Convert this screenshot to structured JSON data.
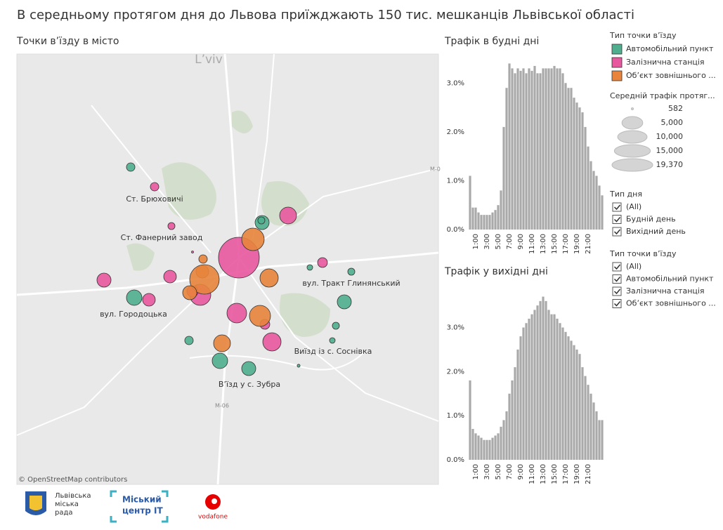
{
  "title": "В середньому протягом дня до Львова приїжджають 150 тис. мешканців Львівської області",
  "chart_data": [
    {
      "type": "bubble-map",
      "title": "Точки  в’їзду в місто",
      "legend_title": "Тип точки в’їзду",
      "series": [
        {
          "name": "Автомобільний пункт",
          "color": "#4fae8d",
          "values": [
            1090,
            2380,
            890,
            2820,
            2380,
            740,
            890,
            890,
            740,
            1090,
            2820,
            2380,
            590
          ]
        },
        {
          "name": "Залізнична станція",
          "color": "#e8589f",
          "values": [
            1090,
            890,
            582,
            3320,
            19370,
            2380,
            1980,
            1980,
            5110,
            1630,
            4460,
            3870,
            1330,
            1330
          ]
        },
        {
          "name": "Об’єкт зовнішнього ...",
          "color": "#e8843c",
          "values": [
            5810,
            1090,
            1980,
            10030,
            2380,
            3870,
            5110,
            3320
          ]
        }
      ],
      "size_legend": {
        "title": "Середній трафік протяг...",
        "values": [
          582,
          {
            "value": 5000,
            "label": "5,000"
          },
          {
            "value": 10000,
            "label": "10,000"
          },
          {
            "value": 15000,
            "label": "15,000"
          },
          {
            "value": 19370,
            "label": "19,370"
          }
        ]
      },
      "annotations": [
        "Ст. Брюховичі",
        "Ст. Фанерний завод",
        "вул. Городоцька",
        "вул. Тракт Глинянський",
        "Виїзд із с. Соснівка",
        "В’їзд у с. Зубра"
      ],
      "map_labels": [
        "L’viv",
        "M-06",
        "M-0"
      ],
      "attribution": "© OpenStreetMap contributors"
    },
    {
      "type": "bar",
      "title": "Трафік в будні дні",
      "color": "#a9a9a9",
      "categories": [
        null,
        null,
        "1:00",
        null,
        null,
        null,
        "3:00",
        null,
        null,
        null,
        "5:00",
        null,
        null,
        null,
        "7:00",
        null,
        null,
        null,
        "9:00",
        null,
        null,
        null,
        "11:00",
        null,
        null,
        null,
        "13:00",
        null,
        null,
        null,
        "15:00",
        null,
        null,
        null,
        "17:00",
        null,
        null,
        null,
        "19:00",
        null,
        null,
        null,
        "21:00",
        null,
        null,
        null,
        null,
        null
      ],
      "values": [
        1.1,
        0.45,
        0.45,
        0.35,
        0.3,
        0.3,
        0.3,
        0.3,
        0.35,
        0.4,
        0.5,
        0.8,
        2.1,
        2.9,
        3.4,
        3.3,
        3.2,
        3.3,
        3.25,
        3.3,
        3.2,
        3.3,
        3.25,
        3.35,
        3.2,
        3.2,
        3.3,
        3.3,
        3.3,
        3.3,
        3.35,
        3.3,
        3.3,
        3.2,
        3.0,
        2.9,
        2.9,
        2.7,
        2.6,
        2.5,
        2.4,
        2.1,
        1.7,
        1.4,
        1.2,
        1.1,
        0.9,
        0.7
      ],
      "ylim": [
        0,
        3.55
      ],
      "yticks": [
        {
          "value": 0,
          "label": "0.0%"
        },
        {
          "value": 1,
          "label": "1.0%"
        },
        {
          "value": 2,
          "label": "2.0%"
        },
        {
          "value": 3,
          "label": "3.0%"
        }
      ]
    },
    {
      "type": "bar",
      "title": "Трафік у вихідні дні",
      "color": "#a9a9a9",
      "categories": [
        null,
        null,
        "1:00",
        null,
        null,
        null,
        "3:00",
        null,
        null,
        null,
        "5:00",
        null,
        null,
        null,
        "7:00",
        null,
        null,
        null,
        "9:00",
        null,
        null,
        null,
        "11:00",
        null,
        null,
        null,
        "13:00",
        null,
        null,
        null,
        "15:00",
        null,
        null,
        null,
        "17:00",
        null,
        null,
        null,
        "19:00",
        null,
        null,
        null,
        "21:00",
        null,
        null,
        null,
        null,
        null
      ],
      "values": [
        1.8,
        0.7,
        0.6,
        0.55,
        0.5,
        0.45,
        0.45,
        0.45,
        0.5,
        0.55,
        0.6,
        0.75,
        0.9,
        1.1,
        1.5,
        1.8,
        2.1,
        2.5,
        2.8,
        3.0,
        3.1,
        3.2,
        3.3,
        3.4,
        3.5,
        3.6,
        3.7,
        3.6,
        3.4,
        3.3,
        3.3,
        3.2,
        3.1,
        3.0,
        2.9,
        2.8,
        2.7,
        2.6,
        2.5,
        2.4,
        2.1,
        1.9,
        1.7,
        1.5,
        1.3,
        1.1,
        0.9,
        0.9
      ],
      "ylim": [
        0,
        3.9
      ],
      "yticks": [
        {
          "value": 0,
          "label": "0.0%"
        },
        {
          "value": 1,
          "label": "1.0%"
        },
        {
          "value": 2,
          "label": "2.0%"
        },
        {
          "value": 3,
          "label": "3.0%"
        }
      ]
    }
  ],
  "filters": [
    {
      "title": "Тип дня",
      "options": [
        "(All)",
        "Будній день",
        "Вихідний день"
      ]
    },
    {
      "title": "Тип точки в’їзду",
      "options": [
        "(All)",
        "Автомобільний пункт",
        "Залізнична станція",
        "Об’єкт зовнішнього ..."
      ]
    }
  ],
  "logos": {
    "city": [
      "Львівська",
      "міська",
      "рада"
    ],
    "it": [
      "Міський",
      "центр IT"
    ],
    "vodafone": "vodafone"
  }
}
